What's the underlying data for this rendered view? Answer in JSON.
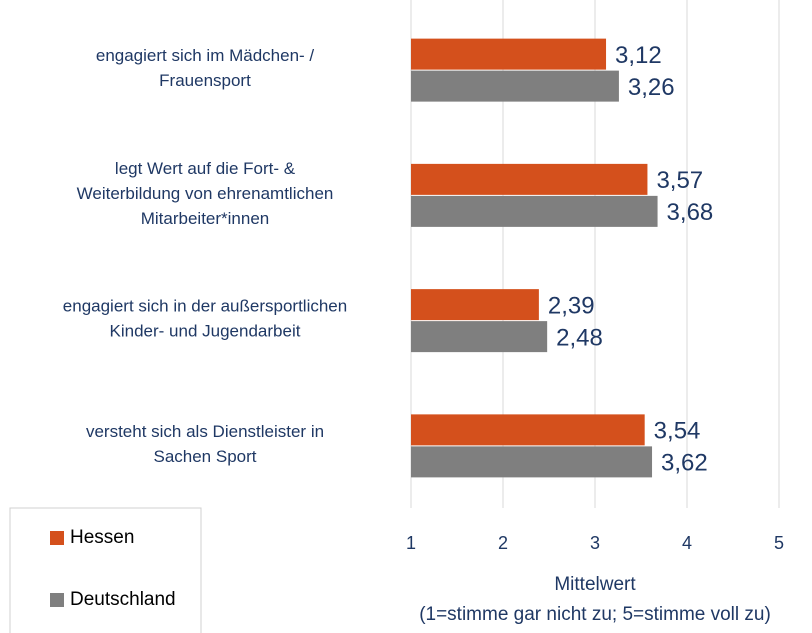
{
  "chart_data": {
    "type": "hbar",
    "categories": [
      [
        "engagiert sich im Mädchen- /",
        "Frauensport"
      ],
      [
        "legt Wert auf die Fort- &",
        "Weiterbildung von ehrenamtlichen",
        "Mitarbeiter*innen"
      ],
      [
        "engagiert sich in der außersportlichen",
        "Kinder- und Jugendarbeit"
      ],
      [
        "versteht sich als Dienstleister in",
        "Sachen Sport"
      ]
    ],
    "series": [
      {
        "name": "Hessen",
        "color": "#d4501c",
        "values": [
          3.12,
          3.57,
          2.39,
          3.54
        ],
        "value_labels": [
          "3,12",
          "3,57",
          "2,39",
          "3,54"
        ]
      },
      {
        "name": "Deutschland",
        "color": "#7f7f7f",
        "values": [
          3.26,
          3.68,
          2.48,
          3.62
        ],
        "value_labels": [
          "3,26",
          "3,68",
          "2,48",
          "3,62"
        ]
      }
    ],
    "xlabel": [
      "Mittelwert",
      "(1=stimme gar nicht zu; 5=stimme voll zu)"
    ],
    "xlim": [
      1,
      5
    ],
    "xticks": [
      1,
      2,
      3,
      4,
      5
    ],
    "grid": true,
    "legend": "bottom-left"
  }
}
